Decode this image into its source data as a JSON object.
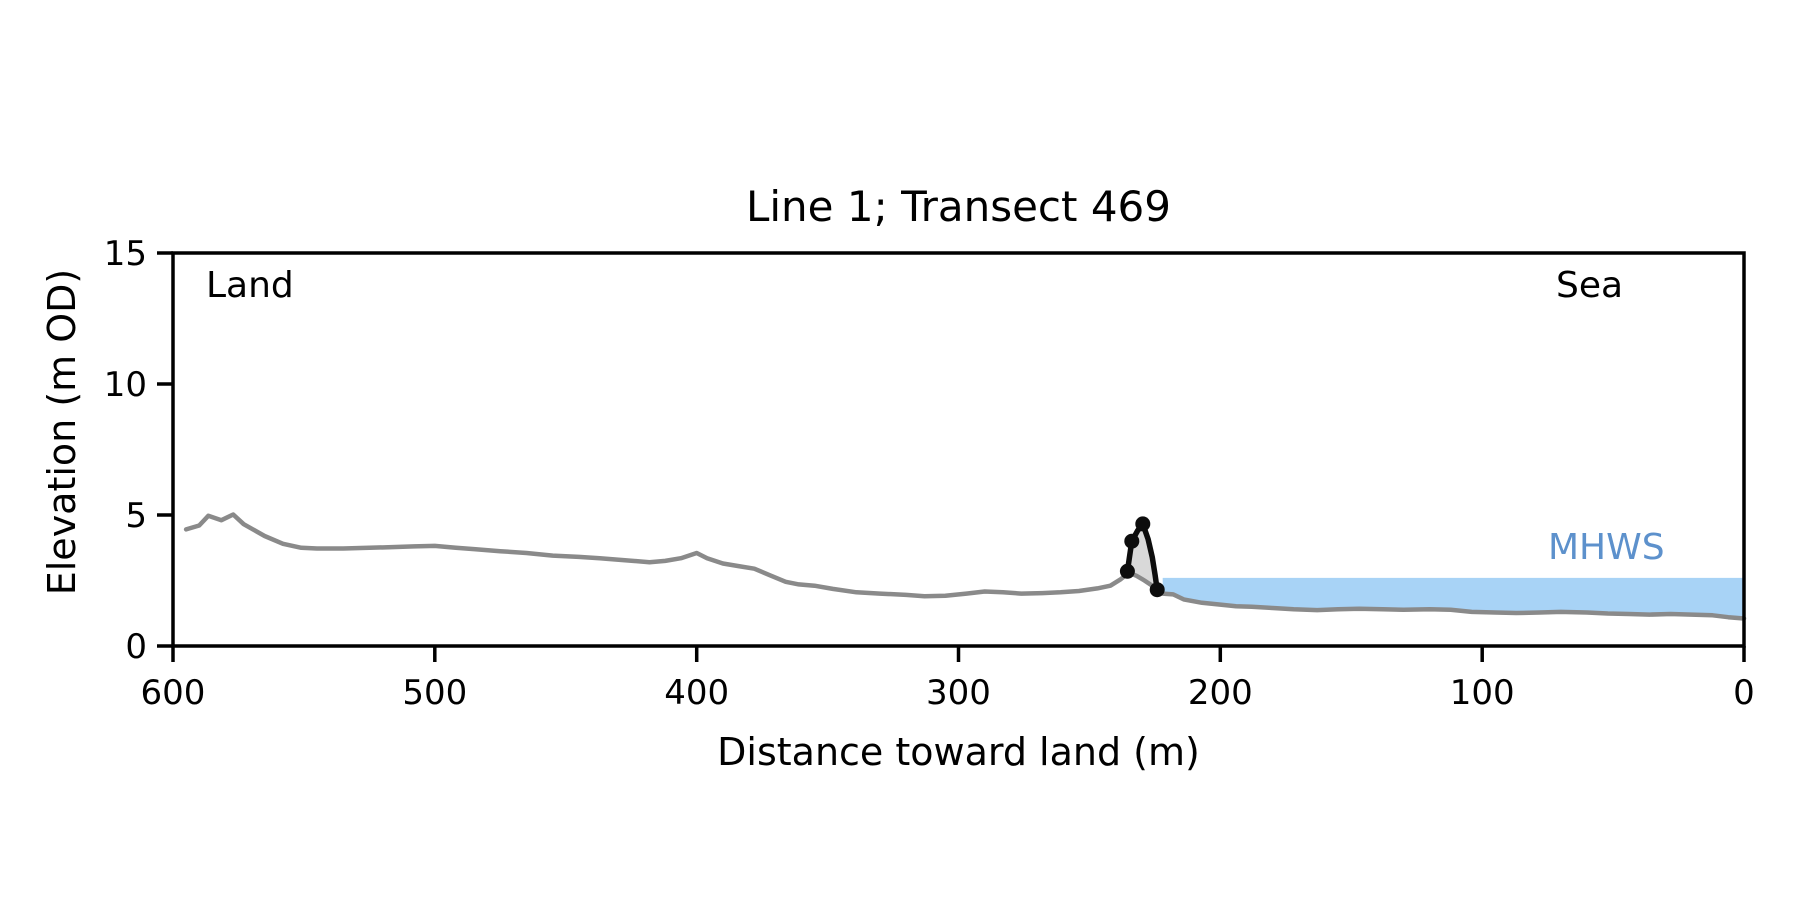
{
  "page": {
    "background": "#ffffff"
  },
  "header": {
    "title": "Line 1; Transect 469"
  },
  "axes": {
    "xlabel": "Distance toward land (m)",
    "ylabel": "Elevation (m OD)"
  },
  "annotations": {
    "land": "Land",
    "sea": "Sea",
    "mhws": "MHWS"
  },
  "colors": {
    "terrain_line": "#8a8a8a",
    "dune_line": "#0d0d0d",
    "dune_marker": "#0d0d0d",
    "dune_fill": "#d9d9d9",
    "sea_fill": "#a8d3f6",
    "mhws_text": "#5d91cc",
    "axis": "#000000",
    "background": "#ffffff"
  },
  "chart_data": {
    "type": "line",
    "title": "Line 1; Transect 469",
    "xlabel": "Distance toward land (m)",
    "ylabel": "Elevation (m OD)",
    "xlim": [
      600,
      0
    ],
    "ylim": [
      0,
      15
    ],
    "x_ticks": [
      600,
      500,
      400,
      300,
      200,
      100,
      0
    ],
    "y_ticks": [
      0,
      5,
      10,
      15
    ],
    "grid": false,
    "legend": "none",
    "mhws_level_m": 2.6,
    "sea_extent_x": [
      222,
      0
    ],
    "series": [
      {
        "name": "terrain-profile",
        "type": "line",
        "x": [
          595,
          590,
          586.5,
          581.5,
          577,
          573,
          565,
          558,
          551,
          545,
          535,
          525,
          515,
          508,
          500,
          492,
          485,
          475,
          465,
          455,
          445,
          437,
          428,
          418,
          412,
          406,
          400,
          396,
          390,
          384,
          378,
          372,
          366,
          361,
          355,
          348,
          339,
          330,
          320,
          313,
          305,
          297,
          290,
          283,
          276,
          268,
          261,
          254,
          247,
          242,
          238,
          235,
          232,
          229,
          226,
          224,
          222,
          218,
          214,
          207,
          200,
          194,
          188,
          180,
          172,
          163,
          155,
          147,
          138,
          130,
          120,
          112,
          104,
          95,
          87,
          78,
          70,
          60,
          52,
          44,
          36,
          28,
          20,
          12,
          6,
          0
        ],
        "y": [
          4.45,
          4.6,
          4.97,
          4.8,
          5.02,
          4.65,
          4.2,
          3.9,
          3.75,
          3.72,
          3.72,
          3.75,
          3.78,
          3.8,
          3.82,
          3.75,
          3.7,
          3.62,
          3.55,
          3.45,
          3.4,
          3.35,
          3.28,
          3.2,
          3.25,
          3.35,
          3.55,
          3.35,
          3.15,
          3.05,
          2.95,
          2.7,
          2.45,
          2.35,
          2.3,
          2.18,
          2.05,
          2.0,
          1.95,
          1.9,
          1.92,
          2.0,
          2.08,
          2.05,
          2.0,
          2.02,
          2.05,
          2.1,
          2.2,
          2.3,
          2.55,
          2.8,
          2.68,
          2.5,
          2.3,
          2.15,
          2.0,
          1.97,
          1.78,
          1.65,
          1.58,
          1.52,
          1.5,
          1.45,
          1.4,
          1.37,
          1.4,
          1.42,
          1.4,
          1.38,
          1.4,
          1.38,
          1.3,
          1.28,
          1.26,
          1.28,
          1.3,
          1.28,
          1.24,
          1.22,
          1.2,
          1.22,
          1.2,
          1.17,
          1.1,
          1.05
        ]
      },
      {
        "name": "dune-feature",
        "type": "line-with-markers",
        "x": [
          235.5,
          233.8,
          231.6,
          229.6,
          227.6,
          226.0,
          224.9,
          224.1
        ],
        "y": [
          2.85,
          4.0,
          4.4,
          4.66,
          4.08,
          3.38,
          2.71,
          2.15
        ],
        "marker_x": [
          235.5,
          233.8,
          229.6,
          224.1
        ],
        "marker_y": [
          2.85,
          4.0,
          4.66,
          2.15
        ]
      }
    ]
  }
}
